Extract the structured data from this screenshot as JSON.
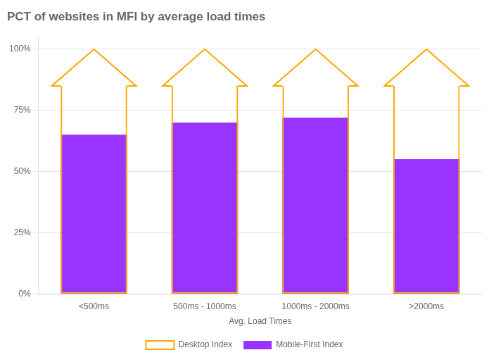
{
  "chart_data": {
    "type": "bar",
    "title": "PCT of websites in MFI by average load times",
    "xlabel": "Avg. Load Times",
    "categories": [
      "<500ms",
      "500ms - 1000ms",
      "1000ms - 2000ms",
      ">2000ms"
    ],
    "series": [
      {
        "name": "Mobile-First Index",
        "color": "#9933ff",
        "values": [
          0.65,
          0.7,
          0.72,
          0.55
        ]
      },
      {
        "name": "Desktop Index",
        "color": "#FFA500",
        "type": "arrow",
        "values": [
          0.85,
          0.85,
          0.85,
          0.85
        ],
        "tips": [
          1.0,
          1.0,
          1.0,
          1.0
        ]
      }
    ],
    "ylim": [
      0,
      1.05
    ],
    "yticks": [
      {
        "value": 0,
        "label": "0%"
      },
      {
        "value": 0.25,
        "label": "25%"
      },
      {
        "value": 0.5,
        "label": "50%"
      },
      {
        "value": 0.75,
        "label": "75%"
      },
      {
        "value": 1.0,
        "label": "100%"
      }
    ],
    "grid": true,
    "legend": "bottom"
  }
}
